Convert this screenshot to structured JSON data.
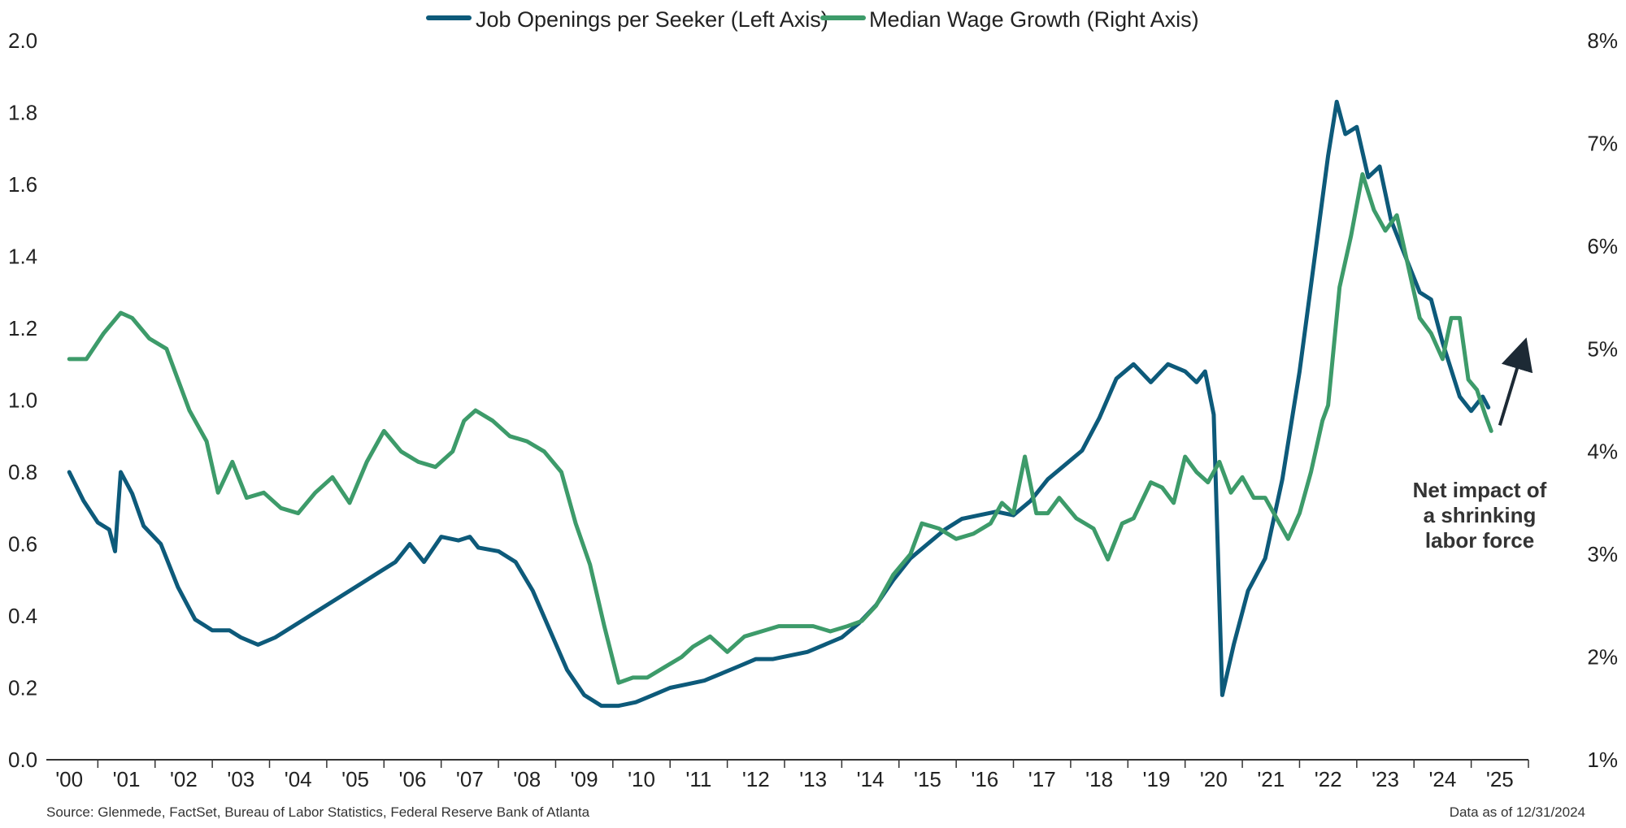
{
  "chart_data": {
    "type": "line",
    "legend_position": "top-center",
    "grid": false,
    "x_range": [
      1999.6,
      2025.5
    ],
    "x_ticks": [
      {
        "x": 2000,
        "label": "'00"
      },
      {
        "x": 2001,
        "label": "'01"
      },
      {
        "x": 2002,
        "label": "'02"
      },
      {
        "x": 2003,
        "label": "'03"
      },
      {
        "x": 2004,
        "label": "'04"
      },
      {
        "x": 2005,
        "label": "'05"
      },
      {
        "x": 2006,
        "label": "'06"
      },
      {
        "x": 2007,
        "label": "'07"
      },
      {
        "x": 2008,
        "label": "'08"
      },
      {
        "x": 2009,
        "label": "'09"
      },
      {
        "x": 2010,
        "label": "'10"
      },
      {
        "x": 2011,
        "label": "'11"
      },
      {
        "x": 2012,
        "label": "'12"
      },
      {
        "x": 2013,
        "label": "'13"
      },
      {
        "x": 2014,
        "label": "'14"
      },
      {
        "x": 2015,
        "label": "'15"
      },
      {
        "x": 2016,
        "label": "'16"
      },
      {
        "x": 2017,
        "label": "'17"
      },
      {
        "x": 2018,
        "label": "'18"
      },
      {
        "x": 2019,
        "label": "'19"
      },
      {
        "x": 2020,
        "label": "'20"
      },
      {
        "x": 2021,
        "label": "'21"
      },
      {
        "x": 2022,
        "label": "'22"
      },
      {
        "x": 2023,
        "label": "'23"
      },
      {
        "x": 2024,
        "label": "'24"
      },
      {
        "x": 2025,
        "label": "'25"
      }
    ],
    "left_axis": {
      "range": [
        0,
        2.0
      ],
      "ticks": [
        {
          "value": 0.0,
          "label": "0.0"
        },
        {
          "value": 0.2,
          "label": "0.2"
        },
        {
          "value": 0.4,
          "label": "0.4"
        },
        {
          "value": 0.6,
          "label": "0.6"
        },
        {
          "value": 0.8,
          "label": "0.8"
        },
        {
          "value": 1.0,
          "label": "1.0"
        },
        {
          "value": 1.2,
          "label": "1.2"
        },
        {
          "value": 1.4,
          "label": "1.4"
        },
        {
          "value": 1.6,
          "label": "1.6"
        },
        {
          "value": 1.8,
          "label": "1.8"
        },
        {
          "value": 2.0,
          "label": "2.0"
        }
      ]
    },
    "right_axis": {
      "range": [
        1,
        8
      ],
      "ticks": [
        {
          "value": 1,
          "label": "1%"
        },
        {
          "value": 2,
          "label": "2%"
        },
        {
          "value": 3,
          "label": "3%"
        },
        {
          "value": 4,
          "label": "4%"
        },
        {
          "value": 5,
          "label": "5%"
        },
        {
          "value": 6,
          "label": "6%"
        },
        {
          "value": 7,
          "label": "7%"
        },
        {
          "value": 8,
          "label": "8%"
        }
      ]
    },
    "series": [
      {
        "name": "Job Openings per Seeker (Left Axis)",
        "axis": "left",
        "color": "#0d5a7a",
        "points": [
          [
            2000.0,
            0.8
          ],
          [
            2000.25,
            0.72
          ],
          [
            2000.5,
            0.66
          ],
          [
            2000.7,
            0.64
          ],
          [
            2000.8,
            0.58
          ],
          [
            2000.9,
            0.8
          ],
          [
            2001.1,
            0.74
          ],
          [
            2001.3,
            0.65
          ],
          [
            2001.6,
            0.6
          ],
          [
            2001.9,
            0.48
          ],
          [
            2002.2,
            0.39
          ],
          [
            2002.5,
            0.36
          ],
          [
            2002.8,
            0.36
          ],
          [
            2003.0,
            0.34
          ],
          [
            2003.3,
            0.32
          ],
          [
            2003.6,
            0.34
          ],
          [
            2003.9,
            0.37
          ],
          [
            2004.2,
            0.4
          ],
          [
            2004.5,
            0.43
          ],
          [
            2004.8,
            0.46
          ],
          [
            2005.1,
            0.49
          ],
          [
            2005.4,
            0.52
          ],
          [
            2005.7,
            0.55
          ],
          [
            2005.95,
            0.6
          ],
          [
            2006.2,
            0.55
          ],
          [
            2006.5,
            0.62
          ],
          [
            2006.8,
            0.61
          ],
          [
            2007.0,
            0.62
          ],
          [
            2007.15,
            0.59
          ],
          [
            2007.5,
            0.58
          ],
          [
            2007.8,
            0.55
          ],
          [
            2008.1,
            0.47
          ],
          [
            2008.4,
            0.36
          ],
          [
            2008.7,
            0.25
          ],
          [
            2009.0,
            0.18
          ],
          [
            2009.3,
            0.15
          ],
          [
            2009.6,
            0.15
          ],
          [
            2009.9,
            0.16
          ],
          [
            2010.2,
            0.18
          ],
          [
            2010.5,
            0.2
          ],
          [
            2010.8,
            0.21
          ],
          [
            2011.1,
            0.22
          ],
          [
            2011.4,
            0.24
          ],
          [
            2011.7,
            0.26
          ],
          [
            2012.0,
            0.28
          ],
          [
            2012.3,
            0.28
          ],
          [
            2012.6,
            0.29
          ],
          [
            2012.9,
            0.3
          ],
          [
            2013.2,
            0.32
          ],
          [
            2013.5,
            0.34
          ],
          [
            2013.8,
            0.38
          ],
          [
            2014.1,
            0.43
          ],
          [
            2014.4,
            0.5
          ],
          [
            2014.7,
            0.56
          ],
          [
            2015.0,
            0.6
          ],
          [
            2015.3,
            0.64
          ],
          [
            2015.6,
            0.67
          ],
          [
            2015.9,
            0.68
          ],
          [
            2016.2,
            0.69
          ],
          [
            2016.5,
            0.68
          ],
          [
            2016.8,
            0.72
          ],
          [
            2017.1,
            0.78
          ],
          [
            2017.4,
            0.82
          ],
          [
            2017.7,
            0.86
          ],
          [
            2018.0,
            0.95
          ],
          [
            2018.3,
            1.06
          ],
          [
            2018.6,
            1.1
          ],
          [
            2018.9,
            1.05
          ],
          [
            2019.2,
            1.1
          ],
          [
            2019.5,
            1.08
          ],
          [
            2019.7,
            1.05
          ],
          [
            2019.85,
            1.08
          ],
          [
            2020.0,
            0.96
          ],
          [
            2020.15,
            0.18
          ],
          [
            2020.35,
            0.32
          ],
          [
            2020.6,
            0.47
          ],
          [
            2020.9,
            0.56
          ],
          [
            2021.2,
            0.78
          ],
          [
            2021.5,
            1.08
          ],
          [
            2021.8,
            1.44
          ],
          [
            2022.0,
            1.68
          ],
          [
            2022.15,
            1.83
          ],
          [
            2022.3,
            1.74
          ],
          [
            2022.5,
            1.76
          ],
          [
            2022.7,
            1.62
          ],
          [
            2022.9,
            1.65
          ],
          [
            2023.1,
            1.5
          ],
          [
            2023.4,
            1.38
          ],
          [
            2023.6,
            1.3
          ],
          [
            2023.8,
            1.28
          ],
          [
            2024.0,
            1.16
          ],
          [
            2024.3,
            1.01
          ],
          [
            2024.5,
            0.97
          ],
          [
            2024.7,
            1.01
          ],
          [
            2024.8,
            0.98
          ]
        ]
      },
      {
        "name": "Median Wage Growth (Right Axis)",
        "axis": "right",
        "color": "#3d9b6a",
        "points": [
          [
            2000.0,
            4.9
          ],
          [
            2000.3,
            4.9
          ],
          [
            2000.6,
            5.15
          ],
          [
            2000.9,
            5.35
          ],
          [
            2001.1,
            5.3
          ],
          [
            2001.4,
            5.1
          ],
          [
            2001.7,
            5.0
          ],
          [
            2001.9,
            4.7
          ],
          [
            2002.1,
            4.4
          ],
          [
            2002.4,
            4.1
          ],
          [
            2002.6,
            3.6
          ],
          [
            2002.85,
            3.9
          ],
          [
            2003.1,
            3.55
          ],
          [
            2003.4,
            3.6
          ],
          [
            2003.7,
            3.45
          ],
          [
            2004.0,
            3.4
          ],
          [
            2004.3,
            3.6
          ],
          [
            2004.6,
            3.75
          ],
          [
            2004.9,
            3.5
          ],
          [
            2005.2,
            3.9
          ],
          [
            2005.5,
            4.2
          ],
          [
            2005.8,
            4.0
          ],
          [
            2006.1,
            3.9
          ],
          [
            2006.4,
            3.85
          ],
          [
            2006.7,
            4.0
          ],
          [
            2006.9,
            4.3
          ],
          [
            2007.1,
            4.4
          ],
          [
            2007.4,
            4.3
          ],
          [
            2007.7,
            4.15
          ],
          [
            2008.0,
            4.1
          ],
          [
            2008.3,
            4.0
          ],
          [
            2008.6,
            3.8
          ],
          [
            2008.85,
            3.3
          ],
          [
            2009.1,
            2.9
          ],
          [
            2009.35,
            2.3
          ],
          [
            2009.6,
            1.75
          ],
          [
            2009.85,
            1.8
          ],
          [
            2010.1,
            1.8
          ],
          [
            2010.4,
            1.9
          ],
          [
            2010.7,
            2.0
          ],
          [
            2010.9,
            2.1
          ],
          [
            2011.2,
            2.2
          ],
          [
            2011.5,
            2.05
          ],
          [
            2011.8,
            2.2
          ],
          [
            2012.1,
            2.25
          ],
          [
            2012.4,
            2.3
          ],
          [
            2012.7,
            2.3
          ],
          [
            2013.0,
            2.3
          ],
          [
            2013.3,
            2.25
          ],
          [
            2013.6,
            2.3
          ],
          [
            2013.85,
            2.35
          ],
          [
            2014.1,
            2.5
          ],
          [
            2014.4,
            2.8
          ],
          [
            2014.7,
            3.0
          ],
          [
            2014.9,
            3.3
          ],
          [
            2015.2,
            3.25
          ],
          [
            2015.5,
            3.15
          ],
          [
            2015.8,
            3.2
          ],
          [
            2016.1,
            3.3
          ],
          [
            2016.3,
            3.5
          ],
          [
            2016.5,
            3.4
          ],
          [
            2016.7,
            3.95
          ],
          [
            2016.9,
            3.4
          ],
          [
            2017.1,
            3.4
          ],
          [
            2017.3,
            3.55
          ],
          [
            2017.6,
            3.35
          ],
          [
            2017.9,
            3.25
          ],
          [
            2018.15,
            2.95
          ],
          [
            2018.4,
            3.3
          ],
          [
            2018.6,
            3.35
          ],
          [
            2018.9,
            3.7
          ],
          [
            2019.1,
            3.65
          ],
          [
            2019.3,
            3.5
          ],
          [
            2019.5,
            3.95
          ],
          [
            2019.7,
            3.8
          ],
          [
            2019.9,
            3.7
          ],
          [
            2020.1,
            3.9
          ],
          [
            2020.3,
            3.6
          ],
          [
            2020.5,
            3.75
          ],
          [
            2020.7,
            3.55
          ],
          [
            2020.9,
            3.55
          ],
          [
            2021.1,
            3.35
          ],
          [
            2021.3,
            3.15
          ],
          [
            2021.5,
            3.4
          ],
          [
            2021.7,
            3.8
          ],
          [
            2021.9,
            4.3
          ],
          [
            2022.0,
            4.45
          ],
          [
            2022.2,
            5.6
          ],
          [
            2022.4,
            6.1
          ],
          [
            2022.6,
            6.7
          ],
          [
            2022.8,
            6.35
          ],
          [
            2023.0,
            6.15
          ],
          [
            2023.2,
            6.3
          ],
          [
            2023.4,
            5.8
          ],
          [
            2023.6,
            5.3
          ],
          [
            2023.8,
            5.15
          ],
          [
            2024.0,
            4.9
          ],
          [
            2024.15,
            5.3
          ],
          [
            2024.3,
            5.3
          ],
          [
            2024.45,
            4.7
          ],
          [
            2024.6,
            4.6
          ],
          [
            2024.75,
            4.35
          ],
          [
            2024.85,
            4.2
          ]
        ]
      }
    ],
    "annotation": {
      "lines": [
        "Net impact of",
        "a shrinking",
        "labor force"
      ],
      "arrow_from": [
        2025.0,
        0.93
      ],
      "arrow_to": [
        2025.4,
        1.14
      ]
    }
  },
  "footer": {
    "source": "Source: Glenmede, FactSet, Bureau of Labor Statistics, Federal Reserve Bank of Atlanta",
    "date": "Data as of 12/31/2024"
  },
  "colors": {
    "job_openings": "#0d5a7a",
    "wage_growth": "#3d9b6a",
    "axis": "#333333",
    "arrow": "#1d2a35"
  }
}
